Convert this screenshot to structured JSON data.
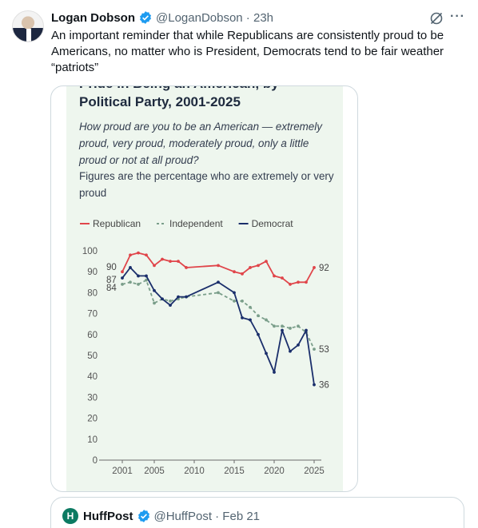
{
  "tweet": {
    "author_name": "Logan Dobson",
    "handle_time": "@LoganDobson · 23h",
    "text": "An important reminder that while Republicans are consistently proud to be Americans, no matter who is President, Democrats tend to be fair weather “patriots”",
    "icons": {
      "verified": "verified-badge-icon",
      "grok": "grok-icon",
      "more": "more-icon"
    },
    "colors": {
      "verified": "#1d9bf0",
      "meta": "#536471"
    }
  },
  "chart_image": {
    "cut_title": "Pride in Being an American, by",
    "title": "Political Party, 2001-2025",
    "subtitle": "How proud are you to be an American — extremely proud, very proud, moderately proud, only a little proud or not at all proud?",
    "note": "Figures are the percentage who are extremely or very proud"
  },
  "chart_data": {
    "type": "line",
    "ylim": [
      0,
      100
    ],
    "xlim": [
      2000,
      2025
    ],
    "y_ticks": [
      0,
      10,
      20,
      30,
      40,
      50,
      60,
      70,
      80,
      90,
      100
    ],
    "x_ticks": [
      2001,
      2005,
      2010,
      2015,
      2020,
      2025
    ],
    "grid": false,
    "legend_position": "top-left",
    "series": [
      {
        "name": "Republican",
        "color": "#e0454a",
        "style": "solid",
        "x": [
          2001,
          2002,
          2003,
          2004,
          2005,
          2006,
          2007,
          2008,
          2009,
          2013,
          2015,
          2016,
          2017,
          2018,
          2019,
          2020,
          2021,
          2022,
          2023,
          2024,
          2025
        ],
        "y": [
          90,
          98,
          99,
          98,
          93,
          96,
          95,
          95,
          92,
          93,
          90,
          89,
          92,
          93,
          95,
          88,
          87,
          84,
          85,
          85,
          92
        ]
      },
      {
        "name": "Independent",
        "color": "#7a9e8a",
        "style": "dashed",
        "x": [
          2001,
          2002,
          2003,
          2004,
          2005,
          2006,
          2007,
          2008,
          2009,
          2013,
          2015,
          2016,
          2017,
          2018,
          2019,
          2020,
          2021,
          2022,
          2023,
          2024,
          2025
        ],
        "y": [
          84,
          85,
          84,
          86,
          75,
          77,
          76,
          77,
          78,
          80,
          76,
          76,
          73,
          69,
          67,
          64,
          64,
          63,
          64,
          61,
          53
        ]
      },
      {
        "name": "Democrat",
        "color": "#1a2e6b",
        "style": "solid",
        "x": [
          2001,
          2002,
          2003,
          2004,
          2005,
          2006,
          2007,
          2008,
          2009,
          2013,
          2015,
          2016,
          2017,
          2018,
          2019,
          2020,
          2021,
          2022,
          2023,
          2024,
          2025
        ],
        "y": [
          87,
          92,
          88,
          88,
          81,
          77,
          74,
          78,
          78,
          85,
          80,
          68,
          67,
          60,
          51,
          42,
          62,
          52,
          55,
          62,
          36
        ]
      }
    ],
    "annotations": [
      {
        "x": 2001,
        "y": 90,
        "text": "90",
        "side": "left"
      },
      {
        "x": 2001,
        "y": 87,
        "text": "87",
        "side": "left"
      },
      {
        "x": 2001,
        "y": 84,
        "text": "84",
        "side": "left"
      },
      {
        "x": 2025,
        "y": 92,
        "text": "92",
        "side": "right"
      },
      {
        "x": 2025,
        "y": 53,
        "text": "53",
        "side": "right"
      },
      {
        "x": 2025,
        "y": 36,
        "text": "36",
        "side": "right"
      }
    ]
  },
  "quoted": {
    "logo_letter": "H",
    "author_name": "HuffPost",
    "handle_time": "@HuffPost · Feb 21"
  }
}
